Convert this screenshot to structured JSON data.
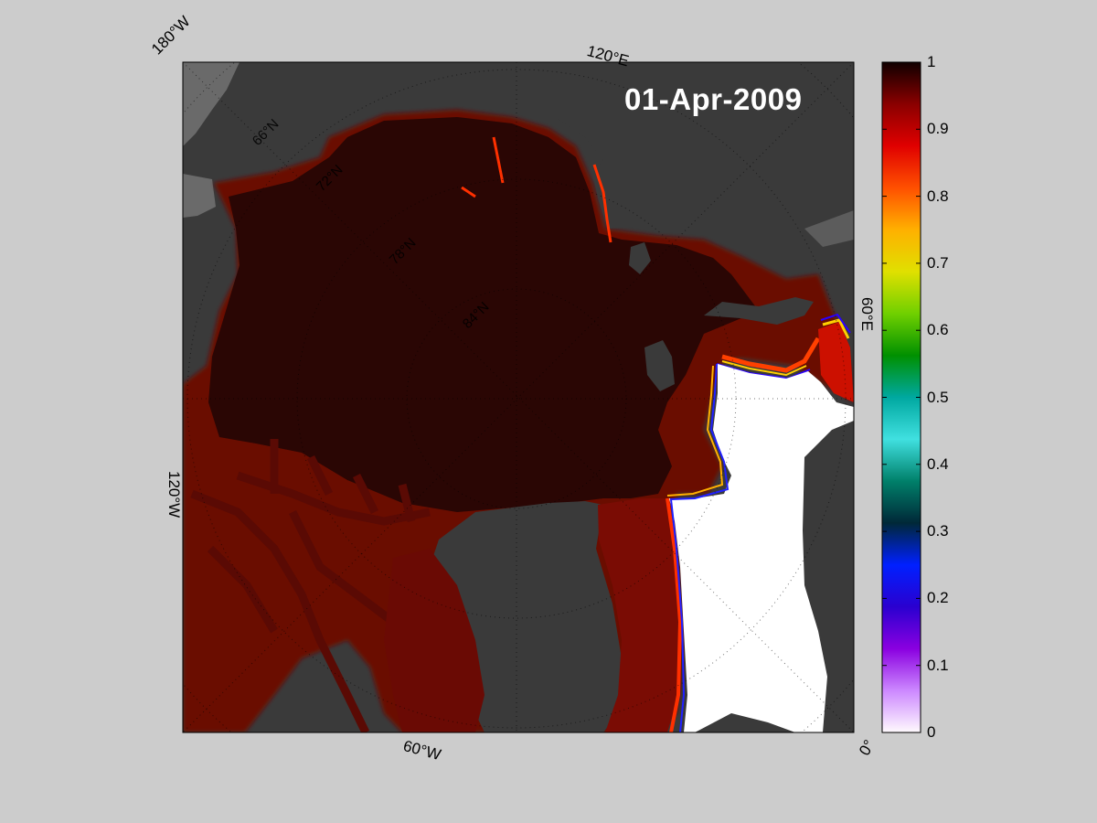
{
  "date_label": "01-Apr-2009",
  "longitude_labels": {
    "lon_180w": "180°W",
    "lon_120e": "120°E",
    "lon_60e": "60°E",
    "lon_120w": "120°W",
    "lon_60w": "60°W",
    "lon_0": "0°"
  },
  "latitude_labels": [
    "66°N",
    "72°N",
    "78°N",
    "84°N"
  ],
  "colorbar": {
    "ticks": [
      "1",
      "0.9",
      "0.8",
      "0.7",
      "0.6",
      "0.5",
      "0.4",
      "0.3",
      "0.2",
      "0.1",
      "0"
    ],
    "colors": [
      "#fffafd",
      "#cc88ff",
      "#8a00e0",
      "#2a00d0",
      "#0020ff",
      "#002838",
      "#00806a",
      "#40e0e0",
      "#00a8a0",
      "#009000",
      "#70d000",
      "#e0e000",
      "#ffb000",
      "#ff5000",
      "#e00000",
      "#8a0000",
      "#100000"
    ]
  },
  "colors": {
    "land": "#3a3a3a",
    "ice_core": "#2a0604",
    "open_water": "#ffffff",
    "unmapped": "#6a6a6a",
    "background": "#cccccc"
  }
}
